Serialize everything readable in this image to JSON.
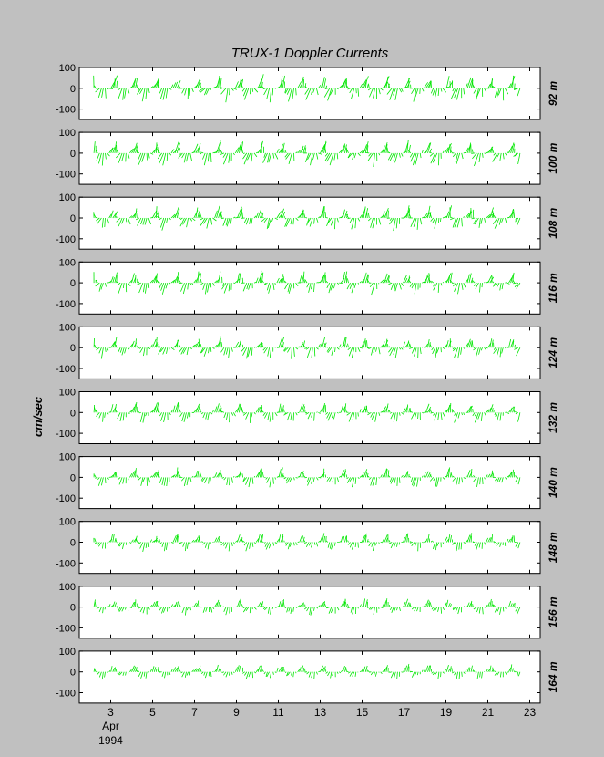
{
  "chart_data": {
    "type": "stick",
    "title": "TRUX-1  Doppler Currents",
    "ylabel": "cm/sec",
    "ylim": [
      -150,
      100
    ],
    "yticks": [
      100,
      0,
      -100
    ],
    "xlim": [
      1.5,
      23.5
    ],
    "xticks": [
      3,
      5,
      7,
      9,
      11,
      13,
      15,
      17,
      19,
      21,
      23
    ],
    "x_sublabels": [
      "Apr",
      "1994"
    ],
    "series_color": "#00e600",
    "time_range_days": [
      2.2,
      22.6
    ],
    "grid": false,
    "depths": [
      "92 m",
      "100 m",
      "108 m",
      "116 m",
      "124 m",
      "132 m",
      "140 m",
      "148 m",
      "156 m",
      "164 m"
    ]
  }
}
